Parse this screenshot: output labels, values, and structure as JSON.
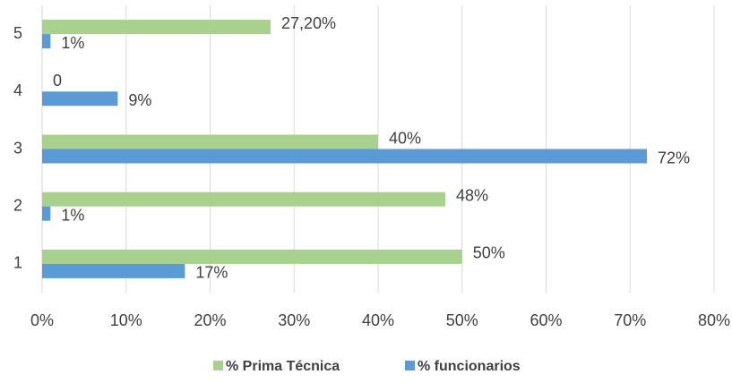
{
  "chart_data": {
    "type": "hbar",
    "categories": [
      "1",
      "2",
      "3",
      "4",
      "5"
    ],
    "series": [
      {
        "name": "% Prima Técnica",
        "color": "#a9d18e",
        "values": [
          50,
          48,
          40,
          0,
          27.2
        ],
        "value_labels": [
          "50%",
          "48%",
          "40%",
          "0",
          "27,20%"
        ]
      },
      {
        "name": "% funcionarios",
        "color": "#5b9bd5",
        "values": [
          17,
          1,
          72,
          9,
          1
        ],
        "value_labels": [
          "17%",
          "1%",
          "72%",
          "9%",
          "1%"
        ]
      }
    ],
    "xlim": [
      0,
      80
    ],
    "xticks": [
      {
        "value": 0,
        "label": "0%"
      },
      {
        "value": 10,
        "label": "10%"
      },
      {
        "value": 20,
        "label": "20%"
      },
      {
        "value": 30,
        "label": "30%"
      },
      {
        "value": 40,
        "label": "40%"
      },
      {
        "value": 50,
        "label": "50%"
      },
      {
        "value": 60,
        "label": "60%"
      },
      {
        "value": 70,
        "label": "70%"
      },
      {
        "value": 80,
        "label": "80%"
      }
    ],
    "grid": true,
    "legend": "bottom"
  }
}
